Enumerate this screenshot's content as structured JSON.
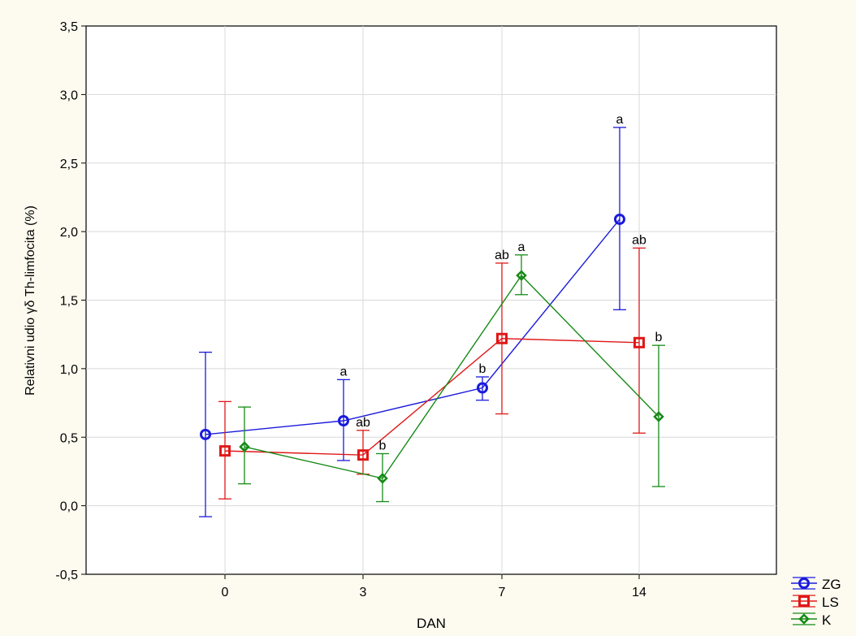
{
  "chart_data": {
    "type": "line",
    "xlabel": "DAN",
    "ylabel": "Relativni udio γδ Th-limfocita (%)",
    "categories": [
      "0",
      "3",
      "7",
      "14"
    ],
    "ylim": [
      -0.5,
      3.5
    ],
    "yticks": [
      -0.5,
      0.0,
      0.5,
      1.0,
      1.5,
      2.0,
      2.5,
      3.0,
      3.5
    ],
    "ytick_labels": [
      "-0,5",
      "0,0",
      "0,5",
      "1,0",
      "1,5",
      "2,0",
      "2,5",
      "3,0",
      "3,5"
    ],
    "grid": true,
    "legend_position": "bottom-right",
    "series": [
      {
        "name": "ZG",
        "color": "#1a1adc",
        "marker": "circle",
        "values": [
          0.52,
          0.62,
          0.86,
          2.09
        ],
        "err_low": [
          -0.08,
          0.33,
          0.77,
          1.43
        ],
        "err_high": [
          1.12,
          0.92,
          0.94,
          2.76
        ],
        "labels": [
          "",
          "a",
          "b",
          "a"
        ]
      },
      {
        "name": "LS",
        "color": "#e01818",
        "marker": "square",
        "values": [
          0.4,
          0.37,
          1.22,
          1.19
        ],
        "err_low": [
          0.05,
          0.23,
          0.67,
          0.53
        ],
        "err_high": [
          0.76,
          0.55,
          1.77,
          1.88
        ],
        "labels": [
          "",
          "ab",
          "ab",
          "ab"
        ]
      },
      {
        "name": "K",
        "color": "#168a16",
        "marker": "diamond",
        "values": [
          0.43,
          0.2,
          1.68,
          0.65
        ],
        "err_low": [
          0.16,
          0.03,
          1.54,
          0.14
        ],
        "err_high": [
          0.72,
          0.38,
          1.83,
          1.17
        ],
        "labels": [
          "",
          "b",
          "a",
          "b"
        ]
      }
    ]
  }
}
